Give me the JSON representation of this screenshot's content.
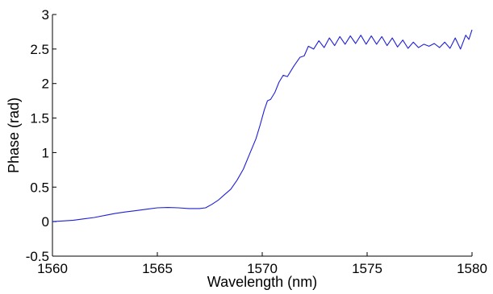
{
  "chart_data": {
    "type": "line",
    "xlabel": "Wavelength (nm)",
    "ylabel": "Phase (rad)",
    "xlim": [
      1560,
      1580
    ],
    "ylim": [
      -0.5,
      3
    ],
    "x_ticks": [
      "1560",
      "1565",
      "1570",
      "1575",
      "1580"
    ],
    "y_ticks": [
      "-0.5",
      "0",
      "0.5",
      "1",
      "1.5",
      "2",
      "2.5",
      "3"
    ],
    "grid": false,
    "box": false,
    "series": [
      {
        "color": "#1f1fd6",
        "points": [
          [
            1560.0,
            0.0
          ],
          [
            1560.5,
            0.01
          ],
          [
            1561.0,
            0.02
          ],
          [
            1561.5,
            0.04
          ],
          [
            1562.0,
            0.06
          ],
          [
            1562.5,
            0.09
          ],
          [
            1563.0,
            0.12
          ],
          [
            1563.5,
            0.14
          ],
          [
            1564.0,
            0.16
          ],
          [
            1564.5,
            0.18
          ],
          [
            1565.0,
            0.2
          ],
          [
            1565.5,
            0.205
          ],
          [
            1566.0,
            0.2
          ],
          [
            1566.5,
            0.19
          ],
          [
            1567.0,
            0.19
          ],
          [
            1567.3,
            0.2
          ],
          [
            1567.6,
            0.25
          ],
          [
            1567.9,
            0.31
          ],
          [
            1568.2,
            0.39
          ],
          [
            1568.5,
            0.47
          ],
          [
            1568.8,
            0.6
          ],
          [
            1569.1,
            0.76
          ],
          [
            1569.4,
            0.98
          ],
          [
            1569.7,
            1.2
          ],
          [
            1569.9,
            1.4
          ],
          [
            1570.1,
            1.62
          ],
          [
            1570.25,
            1.75
          ],
          [
            1570.4,
            1.77
          ],
          [
            1570.6,
            1.87
          ],
          [
            1570.8,
            2.02
          ],
          [
            1571.0,
            2.12
          ],
          [
            1571.2,
            2.1
          ],
          [
            1571.5,
            2.25
          ],
          [
            1571.8,
            2.38
          ],
          [
            1572.0,
            2.4
          ],
          [
            1572.2,
            2.54
          ],
          [
            1572.45,
            2.5
          ],
          [
            1572.7,
            2.62
          ],
          [
            1572.95,
            2.52
          ],
          [
            1573.2,
            2.66
          ],
          [
            1573.45,
            2.55
          ],
          [
            1573.7,
            2.68
          ],
          [
            1573.95,
            2.57
          ],
          [
            1574.2,
            2.69
          ],
          [
            1574.45,
            2.58
          ],
          [
            1574.7,
            2.7
          ],
          [
            1574.95,
            2.57
          ],
          [
            1575.2,
            2.69
          ],
          [
            1575.45,
            2.57
          ],
          [
            1575.7,
            2.68
          ],
          [
            1575.95,
            2.55
          ],
          [
            1576.2,
            2.66
          ],
          [
            1576.45,
            2.53
          ],
          [
            1576.7,
            2.63
          ],
          [
            1576.95,
            2.51
          ],
          [
            1577.2,
            2.6
          ],
          [
            1577.45,
            2.52
          ],
          [
            1577.7,
            2.57
          ],
          [
            1577.95,
            2.54
          ],
          [
            1578.2,
            2.58
          ],
          [
            1578.45,
            2.52
          ],
          [
            1578.7,
            2.6
          ],
          [
            1578.95,
            2.51
          ],
          [
            1579.2,
            2.66
          ],
          [
            1579.45,
            2.5
          ],
          [
            1579.7,
            2.7
          ],
          [
            1579.85,
            2.64
          ],
          [
            1580.0,
            2.78
          ]
        ]
      }
    ]
  }
}
